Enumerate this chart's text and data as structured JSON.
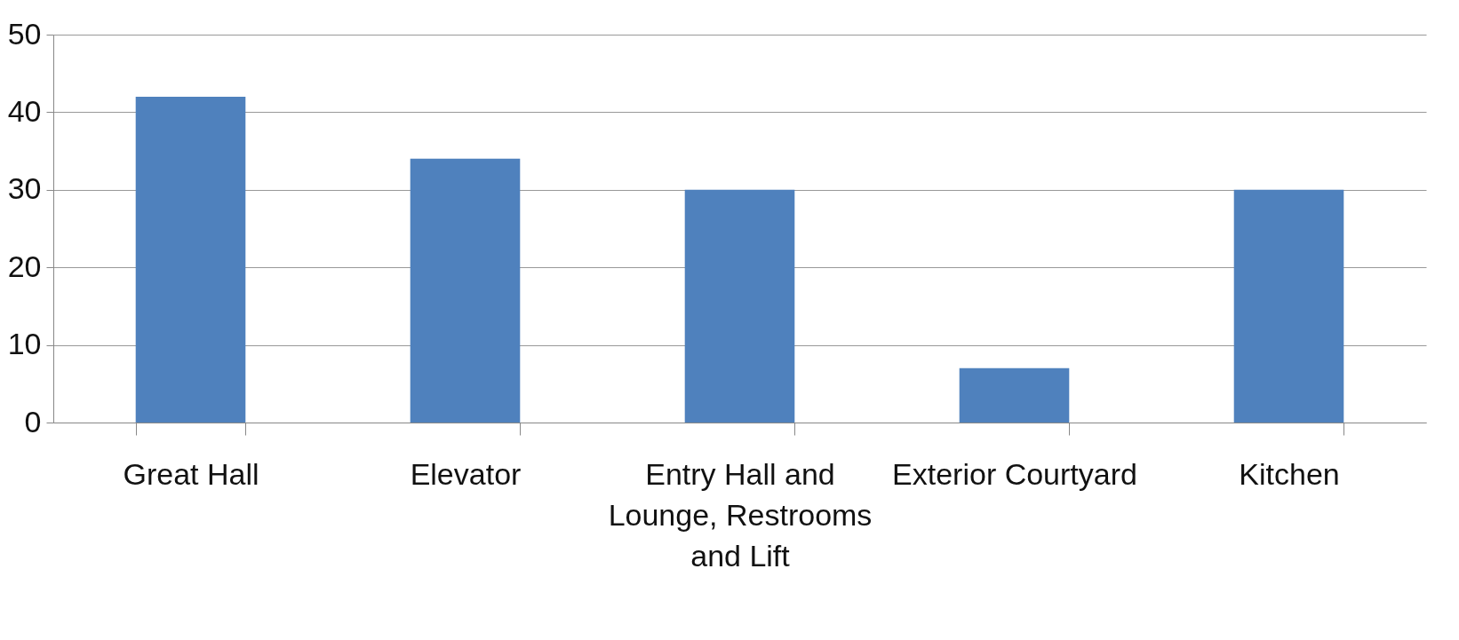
{
  "chart_data": {
    "type": "bar",
    "categories": [
      "Great Hall",
      "Elevator",
      "Entry Hall and Lounge, Restrooms and Lift",
      "Exterior Courtyard",
      "Kitchen"
    ],
    "values": [
      42,
      34,
      30,
      7,
      30
    ],
    "color": "#4f81bd",
    "ylim": [
      0,
      50
    ],
    "yticks": [
      0,
      10,
      20,
      30,
      40,
      50
    ],
    "grid": "y"
  }
}
